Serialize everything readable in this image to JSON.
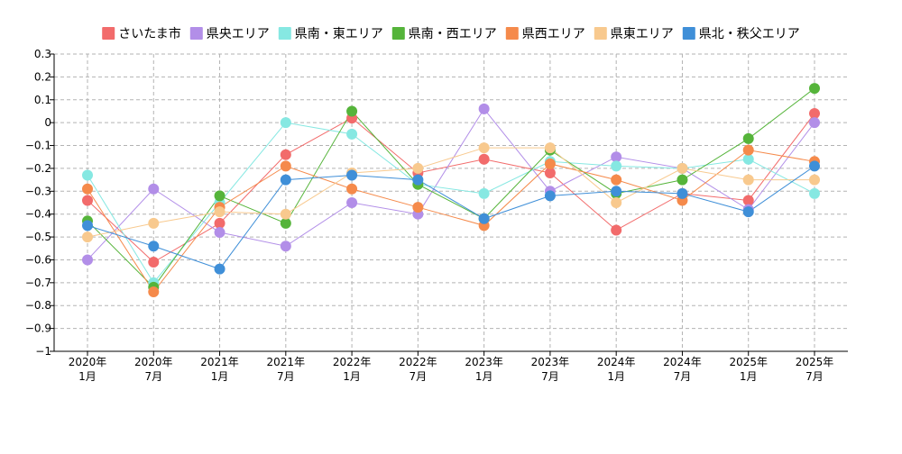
{
  "chart_data": {
    "type": "line",
    "title": "",
    "xlabel": "",
    "ylabel": "",
    "ylim": [
      -1,
      0.3
    ],
    "yticks": [
      0.3,
      0.2,
      0.1,
      0,
      -0.1,
      -0.2,
      -0.3,
      -0.4,
      -0.5,
      -0.6,
      -0.7,
      -0.8,
      -0.9,
      -1
    ],
    "ytick_labels": [
      "0.3",
      "0.2",
      "0.1",
      "0",
      "−0.1",
      "−0.2",
      "−0.3",
      "−0.4",
      "−0.5",
      "−0.6",
      "−0.7",
      "−0.8",
      "−0.9",
      "−1"
    ],
    "categories": [
      {
        "year": "2020年",
        "month": "1月"
      },
      {
        "year": "2020年",
        "month": "7月"
      },
      {
        "year": "2021年",
        "month": "1月"
      },
      {
        "year": "2021年",
        "month": "7月"
      },
      {
        "year": "2022年",
        "month": "1月"
      },
      {
        "year": "2022年",
        "month": "7月"
      },
      {
        "year": "2023年",
        "month": "1月"
      },
      {
        "year": "2023年",
        "month": "7月"
      },
      {
        "year": "2024年",
        "month": "1月"
      },
      {
        "year": "2024年",
        "month": "7月"
      },
      {
        "year": "2025年",
        "month": "1月"
      },
      {
        "year": "2025年",
        "month": "7月"
      }
    ],
    "grid": true,
    "legend_position": "top",
    "series": [
      {
        "name": "さいたま市",
        "color": "#f26b6b",
        "values": [
          -0.34,
          -0.61,
          -0.44,
          -0.14,
          0.02,
          -0.22,
          -0.16,
          -0.22,
          -0.47,
          -0.31,
          -0.34,
          0.04
        ]
      },
      {
        "name": "県央エリア",
        "color": "#b28ee8",
        "values": [
          -0.6,
          -0.29,
          -0.48,
          -0.54,
          -0.35,
          -0.4,
          0.06,
          -0.3,
          -0.15,
          -0.2,
          -0.38,
          0.0
        ]
      },
      {
        "name": "県南・東エリア",
        "color": "#86e8e2",
        "values": [
          -0.23,
          -0.7,
          -0.35,
          0.0,
          -0.05,
          -0.27,
          -0.31,
          -0.17,
          -0.19,
          -0.2,
          -0.16,
          -0.31
        ]
      },
      {
        "name": "県南・西エリア",
        "color": "#55b43a",
        "values": [
          -0.43,
          -0.72,
          -0.32,
          -0.44,
          0.05,
          -0.27,
          -0.42,
          -0.12,
          -0.31,
          -0.25,
          -0.07,
          0.15
        ]
      },
      {
        "name": "県西エリア",
        "color": "#f58a4b",
        "values": [
          -0.29,
          -0.74,
          -0.37,
          -0.19,
          -0.29,
          -0.37,
          -0.45,
          -0.18,
          -0.25,
          -0.34,
          -0.12,
          -0.17
        ]
      },
      {
        "name": "県東エリア",
        "color": "#f8c98e",
        "values": [
          -0.5,
          -0.44,
          -0.39,
          -0.4,
          -0.22,
          -0.2,
          -0.11,
          -0.11,
          -0.35,
          -0.2,
          -0.25,
          -0.25
        ]
      },
      {
        "name": "県北・秩父エリア",
        "color": "#3f8fd8",
        "values": [
          -0.45,
          -0.54,
          -0.64,
          -0.25,
          -0.23,
          -0.25,
          -0.42,
          -0.32,
          -0.3,
          -0.31,
          -0.39,
          -0.19
        ]
      }
    ]
  }
}
